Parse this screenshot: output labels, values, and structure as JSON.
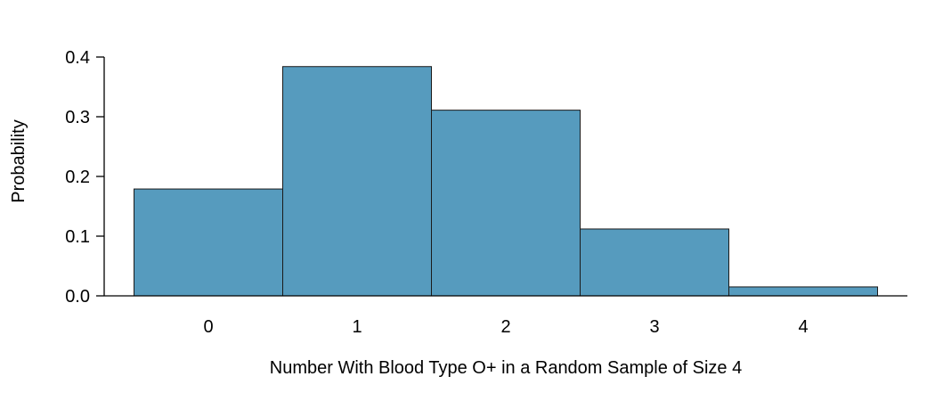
{
  "chart_data": {
    "type": "bar",
    "categories": [
      "0",
      "1",
      "2",
      "3",
      "4"
    ],
    "values": [
      0.179,
      0.384,
      0.311,
      0.112,
      0.015
    ],
    "xlabel": "Number With Blood Type O+ in a Random Sample of Size 4",
    "ylabel": "Probability",
    "ylim": [
      0,
      0.4
    ],
    "yticks": [
      "0.0",
      "0.1",
      "0.2",
      "0.3",
      "0.4"
    ],
    "grid": false,
    "bar_color": "#569bbe"
  }
}
